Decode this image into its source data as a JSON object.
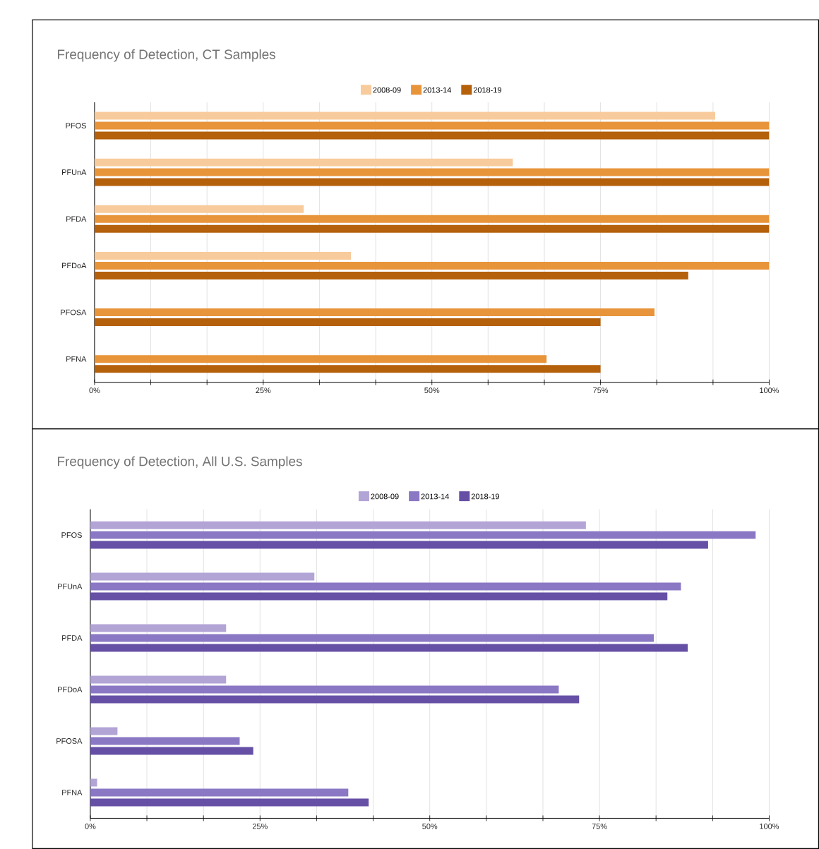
{
  "chart_data": [
    {
      "type": "bar",
      "orientation": "horizontal",
      "title": "Frequency of Detection, CT Samples",
      "categories": [
        "PFOS",
        "PFUnA",
        "PFDA",
        "PFDoA",
        "PFOSA",
        "PFNA"
      ],
      "series": [
        {
          "name": "2008-09",
          "color": "#f8cb9c",
          "values": [
            92,
            62,
            31,
            38,
            0,
            0
          ]
        },
        {
          "name": "2013-14",
          "color": "#e8943a",
          "values": [
            100,
            100,
            100,
            100,
            83,
            67
          ]
        },
        {
          "name": "2018-19",
          "color": "#b5600b",
          "values": [
            100,
            100,
            100,
            88,
            75,
            75
          ]
        }
      ],
      "xlim": [
        0,
        100
      ],
      "xticks": [
        {
          "value": 0,
          "label": "0%"
        },
        {
          "value": 8.33,
          "label": null
        },
        {
          "value": 16.67,
          "label": null
        },
        {
          "value": 25,
          "label": "25%"
        },
        {
          "value": 33.33,
          "label": null
        },
        {
          "value": 41.67,
          "label": null
        },
        {
          "value": 50,
          "label": "50%"
        },
        {
          "value": 58.33,
          "label": null
        },
        {
          "value": 66.67,
          "label": null
        },
        {
          "value": 75,
          "label": "75%"
        },
        {
          "value": 83.33,
          "label": null
        },
        {
          "value": 91.67,
          "label": null
        },
        {
          "value": 100,
          "label": "100%"
        }
      ],
      "grid": "x",
      "legend": "top"
    },
    {
      "type": "bar",
      "orientation": "horizontal",
      "title": "Frequency of Detection, All U.S. Samples",
      "categories": [
        "PFOS",
        "PFUnA",
        "PFDA",
        "PFDoA",
        "PFOSA",
        "PFNA"
      ],
      "series": [
        {
          "name": "2008-09",
          "color": "#b3a4d6",
          "values": [
            73,
            33,
            20,
            20,
            4,
            1
          ]
        },
        {
          "name": "2013-14",
          "color": "#8b78c4",
          "values": [
            98,
            87,
            83,
            69,
            22,
            38
          ]
        },
        {
          "name": "2018-19",
          "color": "#6650a6",
          "values": [
            91,
            85,
            88,
            72,
            24,
            41
          ]
        }
      ],
      "xlim": [
        0,
        100
      ],
      "xticks": [
        {
          "value": 0,
          "label": "0%"
        },
        {
          "value": 8.33,
          "label": null
        },
        {
          "value": 16.67,
          "label": null
        },
        {
          "value": 25,
          "label": "25%"
        },
        {
          "value": 33.33,
          "label": null
        },
        {
          "value": 41.67,
          "label": null
        },
        {
          "value": 50,
          "label": "50%"
        },
        {
          "value": 58.33,
          "label": null
        },
        {
          "value": 66.67,
          "label": null
        },
        {
          "value": 75,
          "label": "75%"
        },
        {
          "value": 83.33,
          "label": null
        },
        {
          "value": 91.67,
          "label": null
        },
        {
          "value": 100,
          "label": "100%"
        }
      ],
      "grid": "x",
      "legend": "top"
    }
  ]
}
